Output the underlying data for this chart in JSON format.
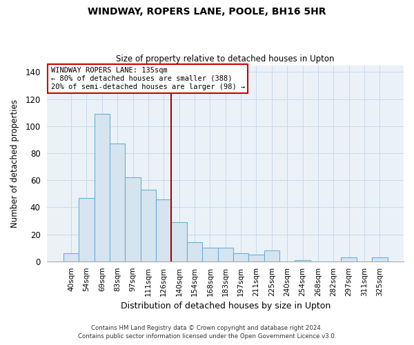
{
  "title": "WINDWAY, ROPERS LANE, POOLE, BH16 5HR",
  "subtitle": "Size of property relative to detached houses in Upton",
  "xlabel": "Distribution of detached houses by size in Upton",
  "ylabel": "Number of detached properties",
  "bar_labels": [
    "40sqm",
    "54sqm",
    "69sqm",
    "83sqm",
    "97sqm",
    "111sqm",
    "126sqm",
    "140sqm",
    "154sqm",
    "168sqm",
    "183sqm",
    "197sqm",
    "211sqm",
    "225sqm",
    "240sqm",
    "254sqm",
    "268sqm",
    "282sqm",
    "297sqm",
    "311sqm",
    "325sqm"
  ],
  "bar_values": [
    6,
    47,
    109,
    87,
    62,
    53,
    46,
    29,
    14,
    10,
    10,
    6,
    5,
    8,
    0,
    1,
    0,
    0,
    3,
    0,
    3
  ],
  "bar_color": "#d6e4f0",
  "bar_edge_color": "#6aaed6",
  "ylim": [
    0,
    145
  ],
  "yticks": [
    0,
    20,
    40,
    60,
    80,
    100,
    120,
    140
  ],
  "property_line_idx": 7,
  "property_line_color": "#aa0000",
  "annotation_line1": "WINDWAY ROPERS LANE: 135sqm",
  "annotation_line2": "← 80% of detached houses are smaller (388)",
  "annotation_line3": "20% of semi-detached houses are larger (98) →",
  "annotation_box_color": "#cc0000",
  "footer_line1": "Contains HM Land Registry data © Crown copyright and database right 2024.",
  "footer_line2": "Contains public sector information licensed under the Open Government Licence v3.0.",
  "bg_color": "#ffffff",
  "plot_bg_color": "#eaf2f8",
  "grid_color": "#c8d8e8"
}
